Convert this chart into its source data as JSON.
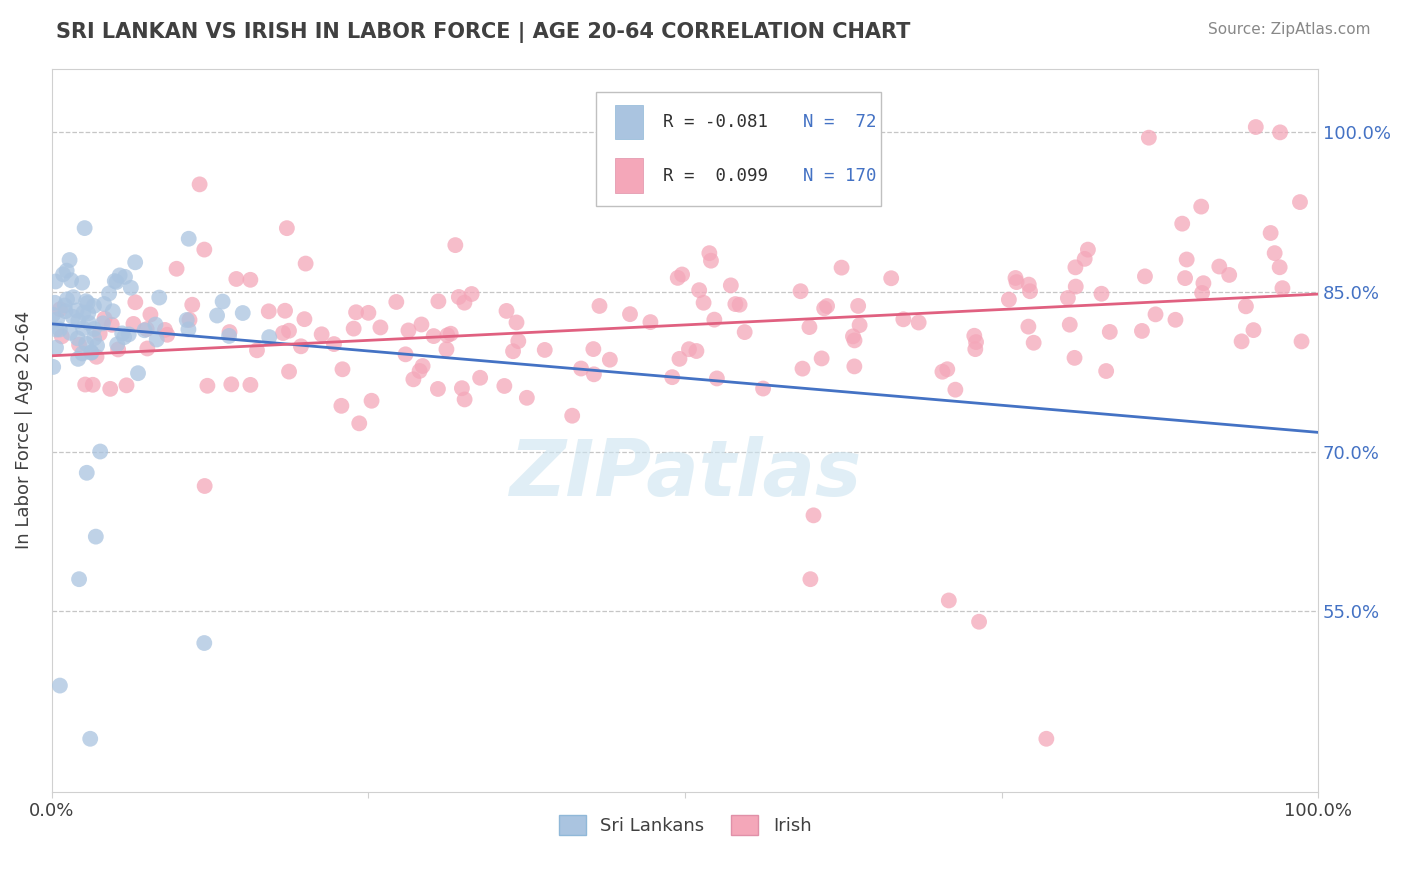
{
  "title": "SRI LANKAN VS IRISH IN LABOR FORCE | AGE 20-64 CORRELATION CHART",
  "source": "Source: ZipAtlas.com",
  "ylabel": "In Labor Force | Age 20-64",
  "y_ticks": [
    0.55,
    0.7,
    0.85,
    1.0
  ],
  "y_tick_labels": [
    "55.0%",
    "70.0%",
    "85.0%",
    "100.0%"
  ],
  "x_range": [
    0.0,
    1.0
  ],
  "y_range": [
    0.38,
    1.06
  ],
  "legend_r1": "R = -0.081",
  "legend_n1": "N =  72",
  "legend_r2": "R =  0.099",
  "legend_n2": "N = 170",
  "color_sri": "#aac4e0",
  "color_irish": "#f4a7b9",
  "color_line_sri": "#4472c4",
  "color_line_irish": "#e06080",
  "color_title": "#404040",
  "color_axis": "#4472c4",
  "watermark": "ZIPatlas",
  "n_sri": 72,
  "n_irish": 170
}
